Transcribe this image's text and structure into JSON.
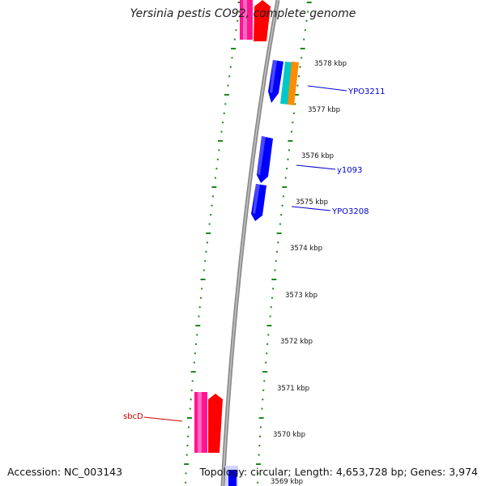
{
  "title": "Yersinia pestis CO92, complete genome",
  "accession": "Accession: NC_003143",
  "summary": "Topology: circular; Length: 4,653,728 bp; Genes: 3,974",
  "ruler": {
    "ticks": [
      {
        "label": "3578 kbp"
      },
      {
        "label": "3577 kbp"
      },
      {
        "label": "3576 kbp"
      },
      {
        "label": "3575 kbp"
      },
      {
        "label": "3574 kbp"
      },
      {
        "label": "3573 kbp"
      },
      {
        "label": "3572 kbp"
      },
      {
        "label": "3571 kbp"
      },
      {
        "label": "3570 kbp"
      },
      {
        "label": "3569 kbp"
      }
    ]
  },
  "genes": [
    {
      "name": "YPO3211",
      "color": "#0000cc"
    },
    {
      "name": "y1093",
      "color": "#0000cc"
    },
    {
      "name": "YPO3208",
      "color": "#0000cc"
    },
    {
      "name": "sbcD",
      "color": "#cc0000"
    }
  ],
  "colors": {
    "backbone": "#808080",
    "tick": "#1a8a1a",
    "forward_gene": "#0000ff",
    "reverse_gene_pink": "#ff1493",
    "reverse_gene_red": "#ff0000",
    "cyan_feature": "#00c8c8",
    "orange_feature": "#ff8c00"
  }
}
